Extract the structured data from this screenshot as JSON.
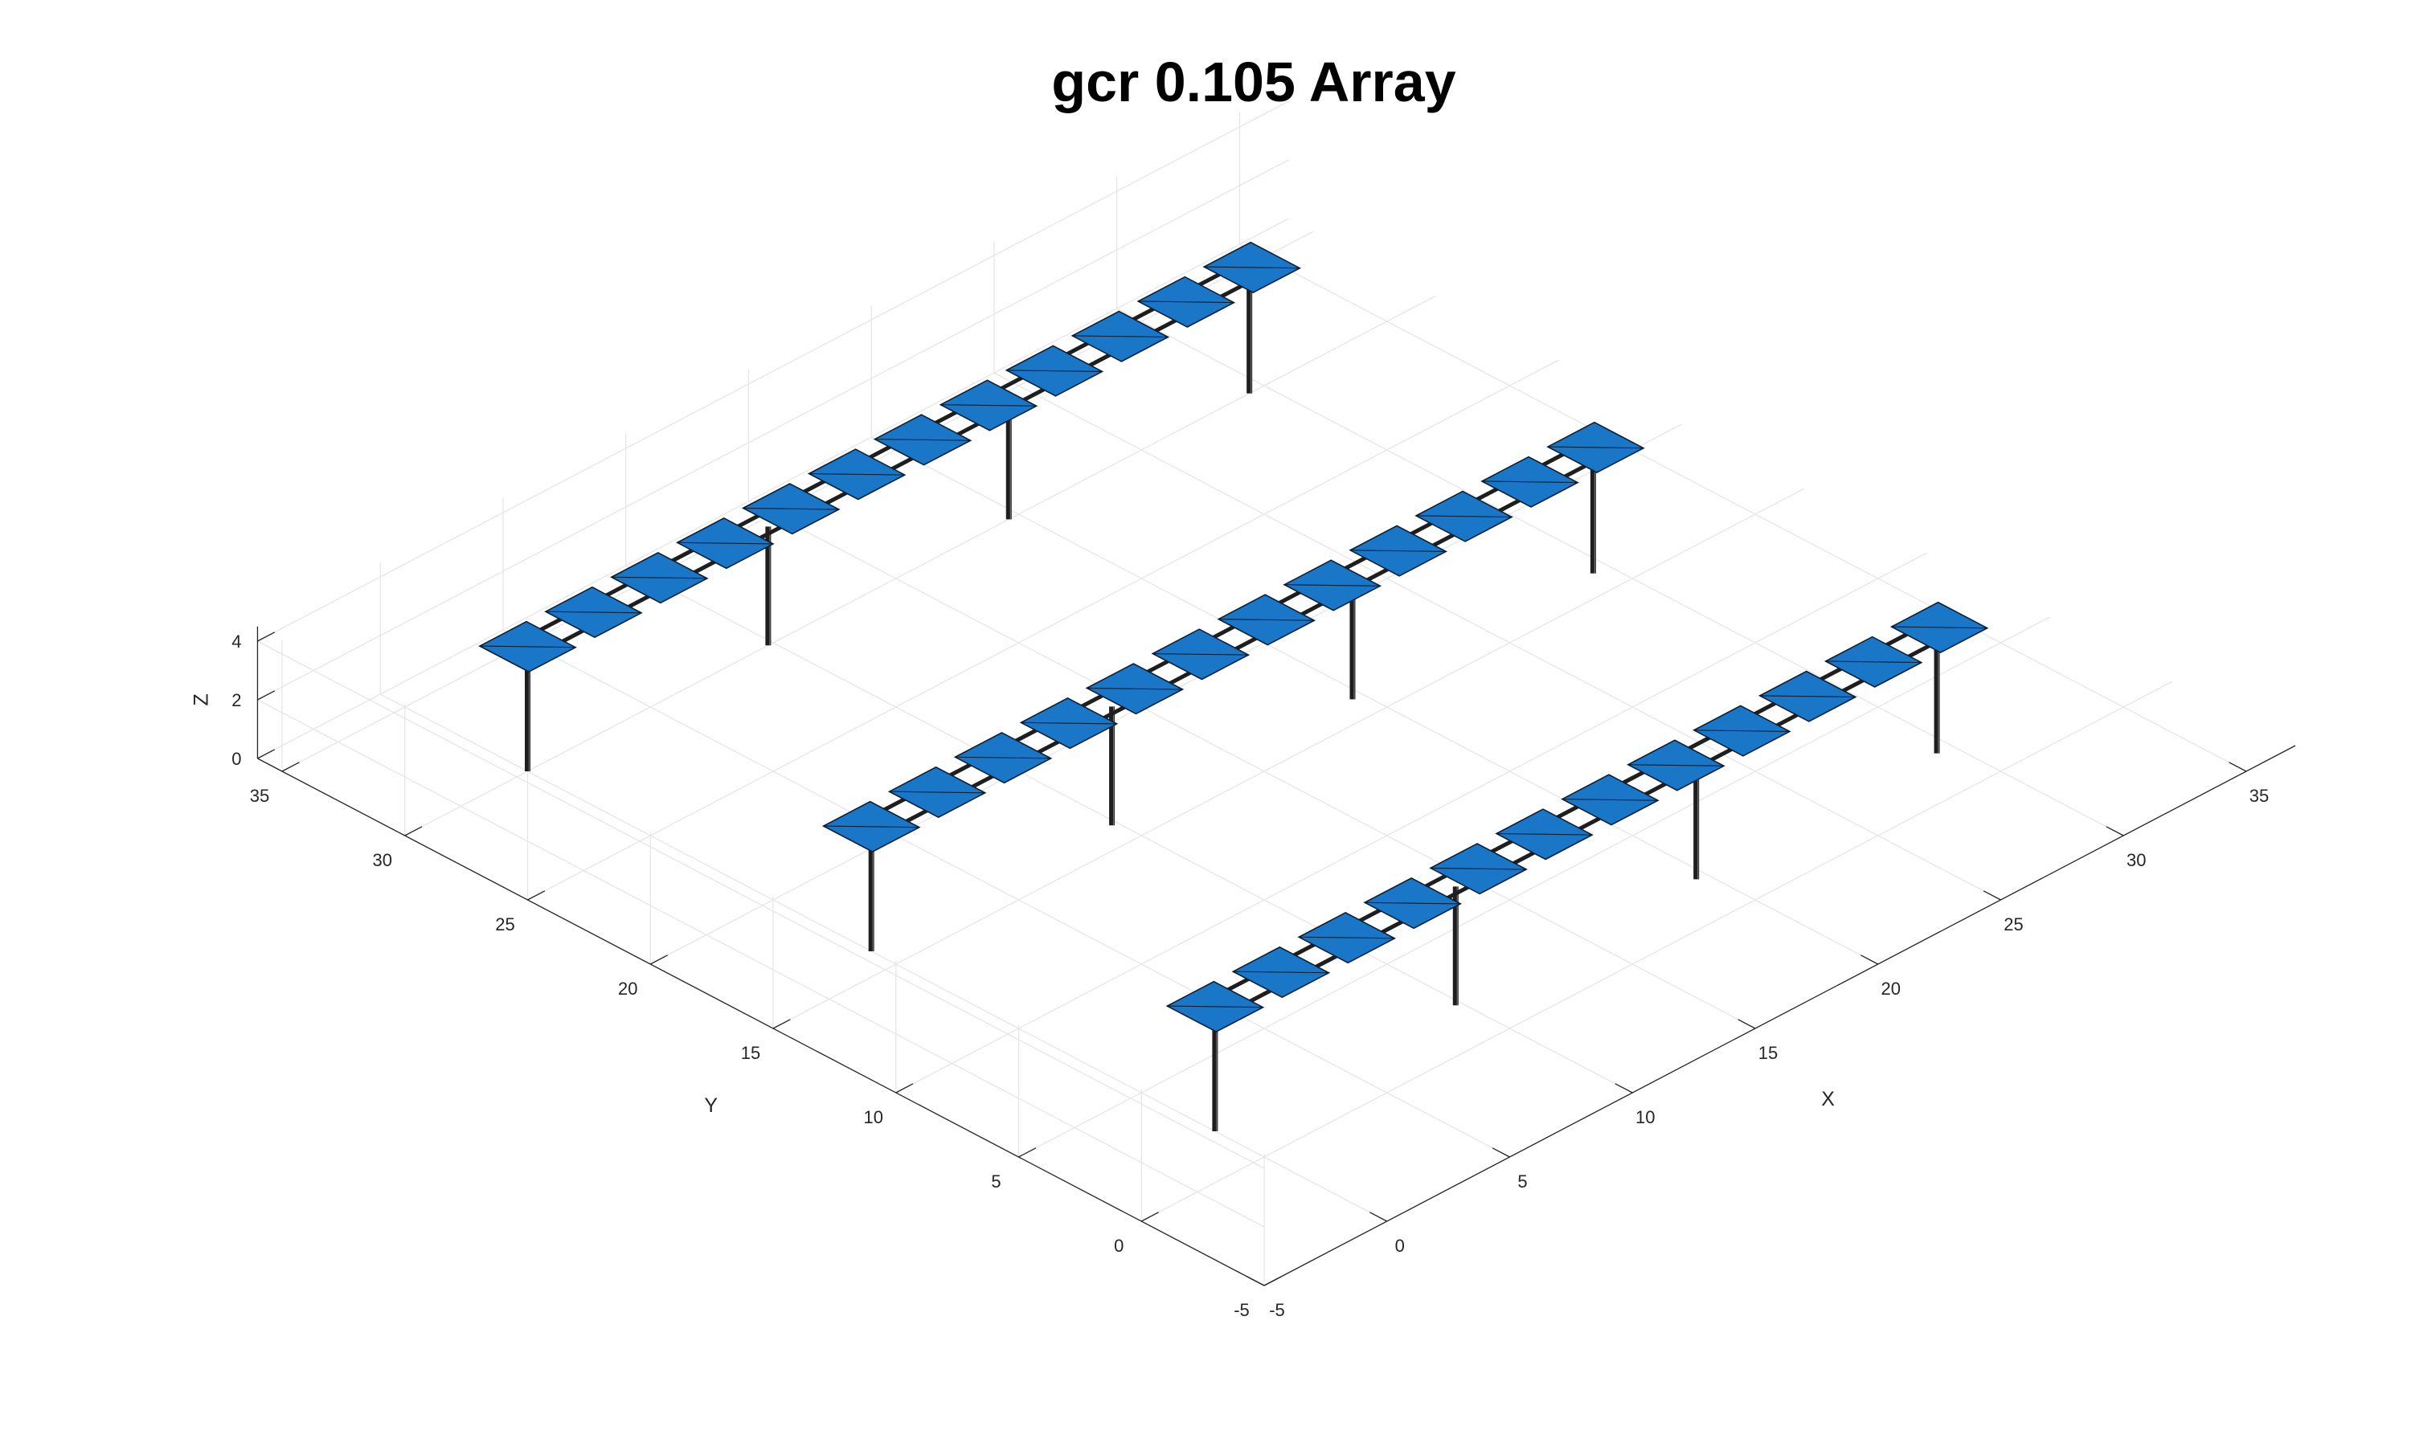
{
  "chart_data": {
    "type": "3d-structure",
    "title": "gcr 0.105 Array",
    "xlabel": "X",
    "ylabel": "Y",
    "zlabel": "Z",
    "xlim": [
      -5,
      37
    ],
    "ylim": [
      -5,
      36
    ],
    "zlim": [
      0,
      4.5
    ],
    "xticks": [
      -5,
      0,
      5,
      10,
      15,
      20,
      25,
      30,
      35
    ],
    "yticks": [
      -5,
      0,
      5,
      10,
      15,
      20,
      25,
      30,
      35
    ],
    "zticks": [
      0,
      2,
      4
    ],
    "grid": true,
    "panel_color": "#1a77c7",
    "structure_color": "#1e1e1e",
    "rows": [
      {
        "y": 30,
        "x_start": 0,
        "x_end": 29.5,
        "post_x": [
          0,
          9.8,
          19.6,
          29.4
        ]
      },
      {
        "y": 16,
        "x_start": 0,
        "x_end": 29.5,
        "post_x": [
          0,
          9.8,
          19.6,
          29.4
        ]
      },
      {
        "y": 2,
        "x_start": 0,
        "x_end": 29.5,
        "post_x": [
          0,
          9.8,
          19.6,
          29.4
        ]
      }
    ],
    "modules_per_row": 12,
    "module_height": 4.2
  }
}
